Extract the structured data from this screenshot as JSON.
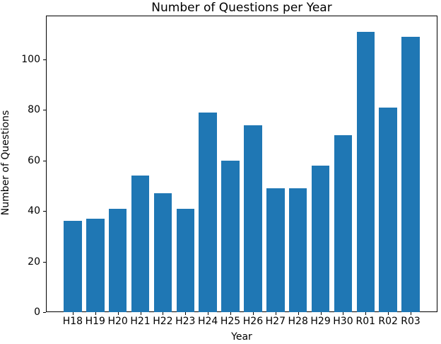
{
  "chart_data": {
    "type": "bar",
    "title": "Number of Questions per Year",
    "xlabel": "Year",
    "ylabel": "Number of Questions",
    "categories": [
      "H18",
      "H19",
      "H20",
      "H21",
      "H22",
      "H23",
      "H24",
      "H25",
      "H26",
      "H27",
      "H28",
      "H29",
      "H30",
      "R01",
      "R02",
      "R03"
    ],
    "values": [
      36,
      37,
      41,
      54,
      47,
      41,
      79,
      60,
      74,
      49,
      49,
      58,
      70,
      111,
      81,
      109
    ],
    "yticks": [
      0,
      20,
      40,
      60,
      80,
      100
    ],
    "ylim": [
      0,
      117.3
    ],
    "bar_color": "#1f77b4",
    "grid": false,
    "legend": "none",
    "spine_color": "#000000"
  }
}
